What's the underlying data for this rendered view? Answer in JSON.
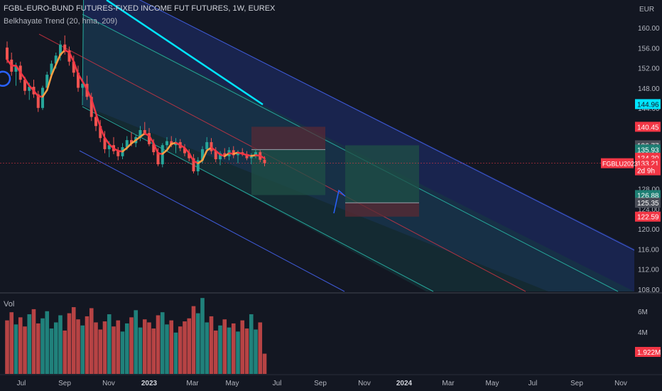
{
  "header": {
    "title": "FGBL-EURO-BUND FUTURES-FIXED INCOME FUT FUTURES, 1W, EUREX",
    "indicator": "Belkhayate Trend (20, hma, 209)",
    "currency": "EUR",
    "volume_label": "Vol"
  },
  "colors": {
    "background": "#131722",
    "up": "#26a69a",
    "down": "#ef5350",
    "channel_outer": "#3f5bd9",
    "channel_inner": "#26a69a",
    "trend": "#f23645",
    "cyan_line": "#00e5ff",
    "channel_fill": "#1c2a5e",
    "inner_fill": "#153a40"
  },
  "chart_data": [
    {
      "type": "candlestick",
      "title": "FGBL-EURO-BUND FUTURES-FIXED INCOME FUT FUTURES, 1W, EUREX",
      "x_ticks": [
        "Jul",
        "Sep",
        "Nov",
        "2023",
        "Mar",
        "May",
        "Jul",
        "Sep",
        "Nov",
        "2024",
        "Mar",
        "May",
        "Jul",
        "Sep",
        "Nov"
      ],
      "y_ticks": [
        "160.00",
        "156.00",
        "152.00",
        "148.00",
        "144.00",
        "140.00",
        "136.00",
        "132.00",
        "128.00",
        "124.00",
        "120.00",
        "116.00",
        "112.00",
        "108.00"
      ],
      "ylim": [
        108,
        160
      ],
      "candles": [
        {
          "o": 156.2,
          "h": 157.4,
          "l": 153.1,
          "c": 153.8
        },
        {
          "o": 153.8,
          "h": 155.2,
          "l": 150.6,
          "c": 151.4
        },
        {
          "o": 151.4,
          "h": 153.2,
          "l": 148.6,
          "c": 152.6
        },
        {
          "o": 152.6,
          "h": 153.4,
          "l": 149.2,
          "c": 149.8
        },
        {
          "o": 149.8,
          "h": 150.4,
          "l": 146.8,
          "c": 147.6
        },
        {
          "o": 147.6,
          "h": 149.2,
          "l": 145.8,
          "c": 148.4
        },
        {
          "o": 148.4,
          "h": 149.8,
          "l": 146.2,
          "c": 146.9
        },
        {
          "o": 146.9,
          "h": 147.6,
          "l": 143.4,
          "c": 144.2
        },
        {
          "o": 144.2,
          "h": 148.6,
          "l": 143.8,
          "c": 148.2
        },
        {
          "o": 148.2,
          "h": 151.4,
          "l": 147.6,
          "c": 150.8
        },
        {
          "o": 150.8,
          "h": 153.6,
          "l": 150.2,
          "c": 153.0
        },
        {
          "o": 153.0,
          "h": 155.2,
          "l": 152.0,
          "c": 154.6
        },
        {
          "o": 154.6,
          "h": 157.6,
          "l": 153.6,
          "c": 156.8
        },
        {
          "o": 156.8,
          "h": 158.6,
          "l": 154.8,
          "c": 155.6
        },
        {
          "o": 155.6,
          "h": 156.4,
          "l": 152.6,
          "c": 153.4
        },
        {
          "o": 153.4,
          "h": 154.6,
          "l": 150.4,
          "c": 151.2
        },
        {
          "o": 151.2,
          "h": 152.6,
          "l": 147.4,
          "c": 148.2
        },
        {
          "o": 148.2,
          "h": 149.8,
          "l": 146.6,
          "c": 149.0
        },
        {
          "o": 149.0,
          "h": 150.6,
          "l": 145.8,
          "c": 146.4
        },
        {
          "o": 146.4,
          "h": 147.2,
          "l": 141.6,
          "c": 142.4
        },
        {
          "o": 142.4,
          "h": 143.6,
          "l": 139.6,
          "c": 140.6
        },
        {
          "o": 140.6,
          "h": 141.8,
          "l": 137.4,
          "c": 138.2
        },
        {
          "o": 138.2,
          "h": 139.6,
          "l": 135.2,
          "c": 136.0
        },
        {
          "o": 136.0,
          "h": 137.6,
          "l": 134.4,
          "c": 136.8
        },
        {
          "o": 136.8,
          "h": 138.4,
          "l": 135.0,
          "c": 135.6
        },
        {
          "o": 135.6,
          "h": 136.4,
          "l": 133.8,
          "c": 134.6
        },
        {
          "o": 134.6,
          "h": 137.2,
          "l": 134.0,
          "c": 136.4
        },
        {
          "o": 136.4,
          "h": 138.6,
          "l": 135.8,
          "c": 137.8
        },
        {
          "o": 137.8,
          "h": 139.4,
          "l": 136.6,
          "c": 137.2
        },
        {
          "o": 137.2,
          "h": 138.8,
          "l": 136.4,
          "c": 138.4
        },
        {
          "o": 138.4,
          "h": 140.6,
          "l": 137.6,
          "c": 139.8
        },
        {
          "o": 139.8,
          "h": 141.4,
          "l": 138.8,
          "c": 139.2
        },
        {
          "o": 139.2,
          "h": 140.2,
          "l": 136.6,
          "c": 137.0
        },
        {
          "o": 137.0,
          "h": 138.0,
          "l": 134.8,
          "c": 135.4
        },
        {
          "o": 135.4,
          "h": 136.2,
          "l": 132.6,
          "c": 133.0
        },
        {
          "o": 133.0,
          "h": 137.2,
          "l": 132.4,
          "c": 136.8
        },
        {
          "o": 136.8,
          "h": 138.4,
          "l": 135.6,
          "c": 137.6
        },
        {
          "o": 137.6,
          "h": 138.6,
          "l": 136.4,
          "c": 136.8
        },
        {
          "o": 136.8,
          "h": 138.2,
          "l": 135.2,
          "c": 137.4
        },
        {
          "o": 137.4,
          "h": 138.0,
          "l": 135.6,
          "c": 136.2
        },
        {
          "o": 136.2,
          "h": 137.0,
          "l": 134.6,
          "c": 135.2
        },
        {
          "o": 135.2,
          "h": 136.0,
          "l": 133.6,
          "c": 134.2
        },
        {
          "o": 134.2,
          "h": 135.0,
          "l": 131.2,
          "c": 131.6
        },
        {
          "o": 131.6,
          "h": 134.4,
          "l": 130.8,
          "c": 133.8
        },
        {
          "o": 133.8,
          "h": 136.6,
          "l": 133.2,
          "c": 136.0
        },
        {
          "o": 136.0,
          "h": 138.4,
          "l": 135.4,
          "c": 137.4
        },
        {
          "o": 137.4,
          "h": 138.2,
          "l": 135.0,
          "c": 135.6
        },
        {
          "o": 135.6,
          "h": 136.4,
          "l": 133.4,
          "c": 134.0
        },
        {
          "o": 134.0,
          "h": 135.6,
          "l": 132.8,
          "c": 135.2
        },
        {
          "o": 135.2,
          "h": 136.2,
          "l": 134.0,
          "c": 134.6
        },
        {
          "o": 134.6,
          "h": 136.4,
          "l": 133.8,
          "c": 135.8
        },
        {
          "o": 135.8,
          "h": 136.6,
          "l": 134.2,
          "c": 134.8
        },
        {
          "o": 134.8,
          "h": 135.8,
          "l": 133.2,
          "c": 135.4
        },
        {
          "o": 135.4,
          "h": 136.2,
          "l": 134.6,
          "c": 135.0
        },
        {
          "o": 135.0,
          "h": 135.6,
          "l": 133.8,
          "c": 134.2
        },
        {
          "o": 134.2,
          "h": 135.2,
          "l": 133.0,
          "c": 134.8
        },
        {
          "o": 134.8,
          "h": 136.0,
          "l": 134.2,
          "c": 135.4
        },
        {
          "o": 135.4,
          "h": 135.8,
          "l": 133.4,
          "c": 133.9
        },
        {
          "o": 133.9,
          "h": 134.6,
          "l": 132.6,
          "c": 133.21
        }
      ],
      "volume": [
        5.2,
        6.0,
        4.8,
        5.5,
        4.6,
        5.8,
        6.3,
        4.9,
        5.4,
        6.1,
        4.4,
        5.0,
        5.7,
        4.2,
        5.9,
        6.5,
        5.3,
        4.7,
        5.6,
        6.4,
        5.0,
        4.3,
        5.1,
        5.8,
        4.6,
        5.2,
        4.1,
        4.9,
        5.5,
        6.2,
        4.5,
        5.3,
        5.0,
        4.4,
        5.7,
        6.0,
        4.8,
        5.2,
        4.0,
        4.6,
        5.1,
        5.4,
        6.6,
        5.9,
        7.4,
        5.0,
        5.6,
        4.2,
        4.7,
        5.3,
        4.5,
        4.9,
        4.1,
        5.2,
        4.4,
        5.8,
        4.3,
        5.0,
        1.922
      ],
      "vol_ticks": [
        "6M",
        "4M"
      ],
      "labels": [
        {
          "text": "144.96",
          "value": 144.96,
          "bg": "#00e5ff",
          "fg": "#131722"
        },
        {
          "text": "140.45",
          "value": 140.45,
          "bg": "#f23645",
          "fg": "#ffffff"
        },
        {
          "text": "136.77",
          "value": 136.77,
          "bg": "#4a4d57",
          "fg": "#ffffff"
        },
        {
          "text": "135.93",
          "value": 135.93,
          "bg": "#1e7f74",
          "fg": "#ffffff"
        },
        {
          "text": "134.30",
          "value": 134.3,
          "bg": "#f23645",
          "fg": "#ffffff"
        },
        {
          "text": "133.21",
          "value": 133.21,
          "bg": "#f23645",
          "fg": "#ffffff"
        },
        {
          "text": "2d 9h",
          "value": 131.8,
          "bg": "#f23645",
          "fg": "#ffffff"
        },
        {
          "text": "126.88",
          "value": 126.88,
          "bg": "#1e7f74",
          "fg": "#ffffff"
        },
        {
          "text": "125.35",
          "value": 125.35,
          "bg": "#4a4d57",
          "fg": "#ffffff"
        },
        {
          "text": "122.59",
          "value": 122.59,
          "bg": "#f23645",
          "fg": "#ffffff"
        }
      ],
      "symbol_tag": "FGBLU2023",
      "volume_tag": "1.922M"
    }
  ]
}
